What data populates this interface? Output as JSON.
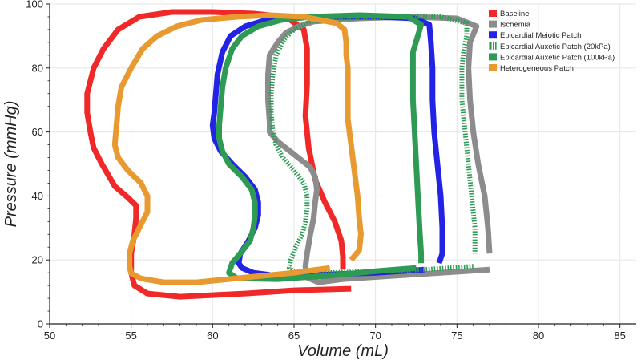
{
  "chart_data": {
    "type": "line",
    "title": "",
    "xlabel": "Volume (mL)",
    "ylabel": "Pressure (mmHg)",
    "xlim": [
      50,
      86
    ],
    "ylim": [
      0,
      100
    ],
    "xticks": [
      50,
      55,
      60,
      65,
      70,
      75,
      80,
      85
    ],
    "yticks": [
      0,
      20,
      40,
      60,
      80,
      100
    ],
    "grid": true,
    "legend_position": "top-right",
    "series": [
      {
        "name": "Baseline",
        "color": "#f02828",
        "dashed": false,
        "points": [
          [
            68.5,
            11
          ],
          [
            65,
            10.5
          ],
          [
            62,
            9.5
          ],
          [
            58,
            8.5
          ],
          [
            56,
            9.5
          ],
          [
            55.2,
            12
          ],
          [
            55,
            16
          ],
          [
            55,
            22
          ],
          [
            55.2,
            28
          ],
          [
            55.3,
            33
          ],
          [
            55.3,
            37
          ],
          [
            54.8,
            39.5
          ],
          [
            54,
            43
          ],
          [
            53.2,
            50
          ],
          [
            52.7,
            55
          ],
          [
            52.5,
            60
          ],
          [
            52.3,
            66
          ],
          [
            52.3,
            72
          ],
          [
            52.7,
            80
          ],
          [
            53.3,
            86
          ],
          [
            54.2,
            92
          ],
          [
            55.5,
            96
          ],
          [
            57.5,
            97.5
          ],
          [
            60,
            97.5
          ],
          [
            62.5,
            97
          ],
          [
            64.5,
            96
          ],
          [
            65.6,
            92
          ],
          [
            65.8,
            86
          ],
          [
            65.8,
            75
          ],
          [
            65.7,
            65
          ],
          [
            65.9,
            55
          ],
          [
            66.3,
            45
          ],
          [
            66.9,
            38
          ],
          [
            67.5,
            32
          ],
          [
            67.9,
            26
          ],
          [
            68,
            21
          ],
          [
            68,
            17
          ]
        ]
      },
      {
        "name": "Ischemia",
        "color": "#8c8c8c",
        "dashed": false,
        "points": [
          [
            77,
            17
          ],
          [
            74,
            16
          ],
          [
            71,
            15
          ],
          [
            68,
            14
          ],
          [
            66.5,
            13
          ],
          [
            65.8,
            14.5
          ],
          [
            65.7,
            18
          ],
          [
            65.8,
            22
          ],
          [
            66,
            28
          ],
          [
            66.2,
            33
          ],
          [
            66.3,
            38
          ],
          [
            66.4,
            42
          ],
          [
            66.3,
            46
          ],
          [
            66,
            49
          ],
          [
            65,
            53
          ],
          [
            64,
            57
          ],
          [
            63.5,
            60
          ],
          [
            63.5,
            63
          ],
          [
            63.4,
            70
          ],
          [
            63.4,
            78
          ],
          [
            63.5,
            84
          ],
          [
            64,
            88
          ],
          [
            64.5,
            91
          ],
          [
            65.3,
            93
          ],
          [
            66.2,
            94.5
          ],
          [
            69,
            95.5
          ],
          [
            72,
            96
          ],
          [
            75,
            95.5
          ],
          [
            76.2,
            93
          ],
          [
            75.8,
            88
          ],
          [
            75.7,
            80
          ],
          [
            75.8,
            70
          ],
          [
            76,
            60
          ],
          [
            76.3,
            50
          ],
          [
            76.7,
            40
          ],
          [
            76.9,
            30
          ],
          [
            77,
            22
          ]
        ]
      },
      {
        "name": "Epicardial Meiotic Patch",
        "color": "#2323e6",
        "dashed": false,
        "points": [
          [
            73,
            17
          ],
          [
            70,
            16
          ],
          [
            67,
            15.5
          ],
          [
            64,
            15
          ],
          [
            62.5,
            16
          ],
          [
            61.8,
            17.5
          ],
          [
            61.6,
            19
          ],
          [
            61.7,
            22
          ],
          [
            62.2,
            26
          ],
          [
            62.6,
            30
          ],
          [
            62.8,
            34
          ],
          [
            62.8,
            38
          ],
          [
            62.6,
            42
          ],
          [
            62,
            46
          ],
          [
            61.2,
            50
          ],
          [
            60.5,
            54
          ],
          [
            60.1,
            58
          ],
          [
            60,
            62
          ],
          [
            60.1,
            66
          ],
          [
            60.2,
            72
          ],
          [
            60.3,
            78
          ],
          [
            60.6,
            85
          ],
          [
            61.1,
            90
          ],
          [
            62,
            93
          ],
          [
            63.3,
            95
          ],
          [
            65,
            96
          ],
          [
            67.5,
            96
          ],
          [
            70,
            96
          ],
          [
            72.4,
            95.5
          ],
          [
            73.3,
            93.5
          ],
          [
            73.4,
            88
          ],
          [
            73.5,
            80
          ],
          [
            73.5,
            70
          ],
          [
            73.6,
            60
          ],
          [
            73.8,
            50
          ],
          [
            74,
            40
          ],
          [
            74.1,
            30
          ],
          [
            74.1,
            22
          ],
          [
            73.9,
            19
          ]
        ]
      },
      {
        "name": "Epicardial Auxetic Patch (20kPa)",
        "color": "#2e9b55",
        "dashed": true,
        "points": [
          [
            76,
            18
          ],
          [
            73,
            17
          ],
          [
            70,
            16.5
          ],
          [
            67,
            16
          ],
          [
            65,
            16.2
          ],
          [
            64.7,
            17.5
          ],
          [
            64.8,
            20
          ],
          [
            65.1,
            24
          ],
          [
            65.5,
            28
          ],
          [
            65.7,
            32
          ],
          [
            65.8,
            36
          ],
          [
            65.8,
            40
          ],
          [
            65.6,
            44
          ],
          [
            65,
            48
          ],
          [
            64.3,
            52
          ],
          [
            63.9,
            56
          ],
          [
            63.7,
            60
          ],
          [
            63.6,
            66
          ],
          [
            63.6,
            72
          ],
          [
            63.7,
            78
          ],
          [
            63.9,
            84
          ],
          [
            64.4,
            89
          ],
          [
            65,
            92
          ],
          [
            66,
            94.5
          ],
          [
            68,
            95.5
          ],
          [
            71,
            96
          ],
          [
            74,
            96
          ],
          [
            75.6,
            94
          ],
          [
            75.6,
            90
          ],
          [
            75.4,
            85
          ],
          [
            75.3,
            80
          ],
          [
            75.3,
            70
          ],
          [
            75.5,
            60
          ],
          [
            75.7,
            50
          ],
          [
            75.9,
            40
          ],
          [
            76.1,
            30
          ],
          [
            76.1,
            22
          ]
        ]
      },
      {
        "name": "Epicardial Auxetic Patch (100kPa)",
        "color": "#2e9b55",
        "dashed": false,
        "points": [
          [
            72.5,
            17.5
          ],
          [
            70,
            16.5
          ],
          [
            67,
            15
          ],
          [
            64,
            14
          ],
          [
            61.5,
            14.2
          ],
          [
            61,
            16
          ],
          [
            61.2,
            19
          ],
          [
            61.7,
            22
          ],
          [
            62.3,
            26
          ],
          [
            62.5,
            30
          ],
          [
            62.6,
            34
          ],
          [
            62.6,
            38
          ],
          [
            62.4,
            42
          ],
          [
            61.8,
            46
          ],
          [
            61,
            50
          ],
          [
            60.6,
            54
          ],
          [
            60.4,
            58
          ],
          [
            60.4,
            62
          ],
          [
            60.5,
            68
          ],
          [
            60.6,
            74
          ],
          [
            60.8,
            80
          ],
          [
            61.2,
            86
          ],
          [
            61.8,
            90
          ],
          [
            62.8,
            93
          ],
          [
            64.2,
            95
          ],
          [
            66,
            96
          ],
          [
            69,
            96.5
          ],
          [
            72,
            96
          ],
          [
            72.8,
            93.5
          ],
          [
            72.6,
            90
          ],
          [
            72.3,
            85
          ],
          [
            72.3,
            80
          ],
          [
            72.3,
            70
          ],
          [
            72.4,
            60
          ],
          [
            72.5,
            50
          ],
          [
            72.6,
            40
          ],
          [
            72.7,
            30
          ],
          [
            72.8,
            22
          ],
          [
            72.8,
            19
          ]
        ]
      },
      {
        "name": "Heterogeneous Patch",
        "color": "#e89a30",
        "dashed": false,
        "points": [
          [
            67.2,
            17.5
          ],
          [
            65,
            16
          ],
          [
            62,
            14.5
          ],
          [
            59,
            13
          ],
          [
            57,
            13
          ],
          [
            55.6,
            14.2
          ],
          [
            55,
            15.8
          ],
          [
            54.9,
            18
          ],
          [
            54.9,
            22
          ],
          [
            55.1,
            26
          ],
          [
            55.5,
            30
          ],
          [
            56,
            35
          ],
          [
            56,
            40
          ],
          [
            55.6,
            44
          ],
          [
            54.8,
            48
          ],
          [
            54.2,
            52
          ],
          [
            54,
            56
          ],
          [
            54.1,
            62
          ],
          [
            54.2,
            68
          ],
          [
            54.4,
            74
          ],
          [
            55,
            80
          ],
          [
            55.7,
            86
          ],
          [
            56.6,
            90
          ],
          [
            57.8,
            93
          ],
          [
            59.3,
            95
          ],
          [
            61.5,
            96
          ],
          [
            63.5,
            96.5
          ],
          [
            65.6,
            96
          ],
          [
            67.6,
            94
          ],
          [
            68.1,
            92
          ],
          [
            68.2,
            88
          ],
          [
            68.2,
            84
          ],
          [
            68.3,
            80
          ],
          [
            68.3,
            72
          ],
          [
            68.3,
            64
          ],
          [
            68.5,
            56
          ],
          [
            68.7,
            48
          ],
          [
            68.9,
            40
          ],
          [
            69,
            33
          ],
          [
            69.1,
            28
          ],
          [
            69,
            23
          ],
          [
            68.5,
            20
          ]
        ]
      }
    ]
  }
}
